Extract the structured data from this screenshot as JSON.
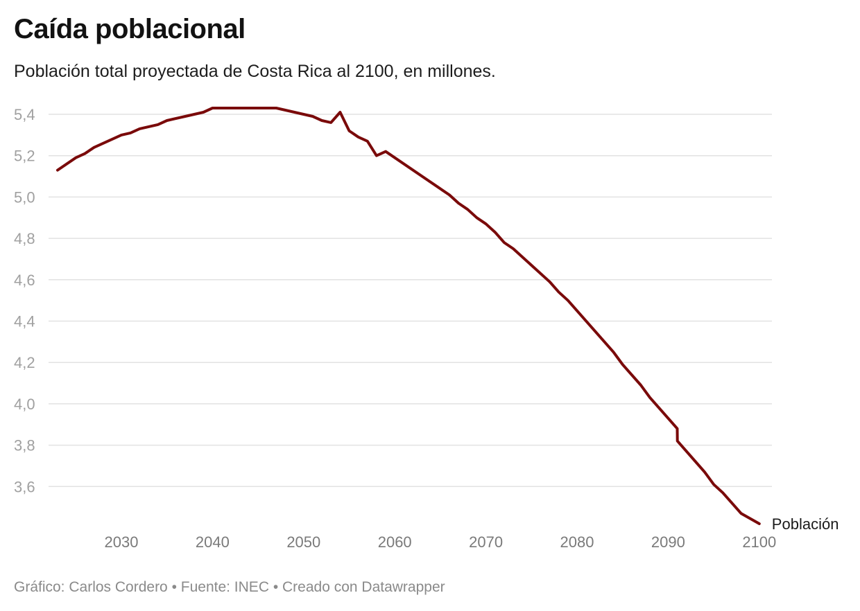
{
  "header": {
    "title": "Caída poblacional",
    "subtitle": "Población total proyectada de Costa Rica al 2100, en millones."
  },
  "footer": {
    "credit_label": "Gráfico:",
    "credit_name": "Carlos Cordero",
    "separator": "•",
    "source_label": "Fuente:",
    "source_name": "INEC",
    "made_with": "Creado con Datawrapper",
    "text": "Gráfico: Carlos Cordero • Fuente: INEC • Creado con Datawrapper"
  },
  "colors": {
    "line": "#7a0a0a",
    "grid": "#e2e2e2",
    "ytick": "#a0a0a0",
    "xtick": "#7a7a7a"
  },
  "chart_data": {
    "type": "line",
    "title": "Caída poblacional",
    "subtitle": "Población total proyectada de Costa Rica al 2100, en millones.",
    "xlabel": "",
    "ylabel": "",
    "xlim": [
      2023,
      2100
    ],
    "ylim": [
      3.42,
      5.43
    ],
    "grid": true,
    "legend": "direct label at line end (right)",
    "x_ticks": [
      2030,
      2040,
      2050,
      2060,
      2070,
      2080,
      2090,
      2100
    ],
    "x_tick_labels": [
      "2030",
      "2040",
      "2050",
      "2060",
      "2070",
      "2080",
      "2090",
      "2100"
    ],
    "y_ticks": [
      3.6,
      3.8,
      4.0,
      4.2,
      4.4,
      4.6,
      4.8,
      5.0,
      5.2,
      5.4
    ],
    "y_tick_labels": [
      "3,6",
      "3,8",
      "4,0",
      "4,2",
      "4,4",
      "4,6",
      "4,8",
      "5,0",
      "5,2",
      "5,4"
    ],
    "series": [
      {
        "name": "Población",
        "x": [
          2023,
          2025,
          2026,
          2027,
          2030,
          2031,
          2032,
          2034,
          2035,
          2037,
          2039,
          2040,
          2047,
          2051,
          2052,
          2053,
          2054,
          2055,
          2056,
          2057,
          2058,
          2059,
          2066,
          2067,
          2068,
          2069,
          2070,
          2071,
          2072,
          2073,
          2077,
          2078,
          2079,
          2084,
          2085,
          2087,
          2088,
          2091,
          2091.01,
          2094,
          2095,
          2096,
          2098,
          2100
        ],
        "values": [
          5.13,
          5.19,
          5.21,
          5.24,
          5.3,
          5.31,
          5.33,
          5.35,
          5.37,
          5.39,
          5.41,
          5.43,
          5.43,
          5.39,
          5.37,
          5.36,
          5.41,
          5.32,
          5.29,
          5.27,
          5.2,
          5.22,
          5.01,
          4.97,
          4.94,
          4.9,
          4.87,
          4.83,
          4.78,
          4.75,
          4.59,
          4.54,
          4.5,
          4.25,
          4.19,
          4.09,
          4.03,
          3.88,
          3.82,
          3.67,
          3.61,
          3.57,
          3.47,
          3.42
        ]
      }
    ]
  }
}
